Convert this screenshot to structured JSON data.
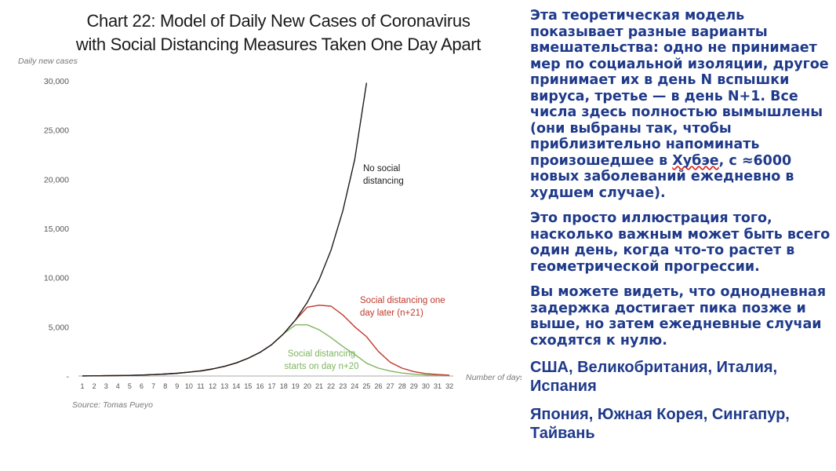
{
  "chart_data": {
    "type": "line",
    "title": [
      "Chart 22: Model of Daily New Cases of Coronavirus",
      "with Social Distancing Measures Taken One Day Apart"
    ],
    "ylabel": "Daily new cases",
    "xlabel": "Number of days",
    "source": "Source: Tomas Pueyo",
    "ylim": [
      0,
      30000
    ],
    "y_ticks": [
      {
        "value": 0,
        "label": "-"
      },
      {
        "value": 5000,
        "label": "5,000"
      },
      {
        "value": 10000,
        "label": "10,000"
      },
      {
        "value": 15000,
        "label": "15,000"
      },
      {
        "value": 20000,
        "label": "20,000"
      },
      {
        "value": 25000,
        "label": "25,000"
      },
      {
        "value": 30000,
        "label": "30,000"
      }
    ],
    "x": [
      1,
      2,
      3,
      4,
      5,
      6,
      7,
      8,
      9,
      10,
      11,
      12,
      13,
      14,
      15,
      16,
      17,
      18,
      19,
      20,
      21,
      22,
      23,
      24,
      25,
      26,
      27,
      28,
      29,
      30,
      31,
      32
    ],
    "series": [
      {
        "name": "No social distancing",
        "label_lines": [
          "No social",
          "distancing"
        ],
        "color": "#1c1c1c",
        "x": [
          1,
          2,
          3,
          4,
          5,
          6,
          7,
          8,
          9,
          10,
          11,
          12,
          13,
          14,
          15,
          16,
          17,
          18,
          19,
          20,
          21,
          22,
          23,
          24,
          25
        ],
        "values": [
          10,
          20,
          30,
          45,
          65,
          95,
          140,
          200,
          280,
          390,
          520,
          720,
          980,
          1330,
          1800,
          2400,
          3200,
          4300,
          5700,
          7500,
          9800,
          12800,
          16800,
          22000,
          29800
        ]
      },
      {
        "name": "Social distancing one day later (n+21)",
        "label_lines": [
          "Social distancing one",
          "day later (n+21)"
        ],
        "color": "#c0392b",
        "x": [
          1,
          2,
          3,
          4,
          5,
          6,
          7,
          8,
          9,
          10,
          11,
          12,
          13,
          14,
          15,
          16,
          17,
          18,
          19,
          20,
          21,
          22,
          23,
          24,
          25,
          26,
          27,
          28,
          29,
          30,
          31,
          32
        ],
        "values": [
          10,
          20,
          30,
          45,
          65,
          95,
          140,
          200,
          280,
          390,
          520,
          720,
          980,
          1330,
          1800,
          2400,
          3200,
          4300,
          5700,
          7000,
          7200,
          7100,
          6200,
          5000,
          4000,
          2500,
          1400,
          800,
          450,
          250,
          150,
          90
        ]
      },
      {
        "name": "Social distancing starts on day n+20",
        "label_lines": [
          "Social distancing",
          "starts on day n+20"
        ],
        "color": "#7fb55e",
        "x": [
          1,
          2,
          3,
          4,
          5,
          6,
          7,
          8,
          9,
          10,
          11,
          12,
          13,
          14,
          15,
          16,
          17,
          18,
          19,
          20,
          21,
          22,
          23,
          24,
          25,
          26,
          27,
          28,
          29,
          30,
          31,
          32
        ],
        "values": [
          10,
          20,
          30,
          45,
          65,
          95,
          140,
          200,
          280,
          390,
          520,
          720,
          980,
          1330,
          1800,
          2400,
          3200,
          4300,
          5200,
          5200,
          4700,
          3900,
          3000,
          2200,
          1300,
          800,
          500,
          300,
          180,
          100,
          60,
          40
        ]
      }
    ],
    "grid": false
  },
  "text_panel": {
    "paragraphs": [
      "Эта теоретическая модель показывает разные варианты вмешательства: одно не принимает мер по социальной изоляции, другое принимает их в день N вспышки вируса, третье — в день N+1. Все числа здесь полностью вымышлены (они выбраны так, чтобы приблизительно напоминать произошедшее в Хубэе, с ≈6000 новых заболеваний ежедневно в худшем случае).",
      "Это просто иллюстрация того, насколько важным может быть всего один день, когда что-то растет в геометрической прогрессии.",
      "Вы можете видеть, что однодневная задержка достигает пика позже и выше, но затем ежедневные случаи сходятся к нулю."
    ],
    "countries_1": "США, Великобритания, Италия, Испания",
    "countries_2": "Япония, Южная Корея, Сингапур, Тайвань"
  },
  "colors": {
    "text_blue": "#1f3a8a",
    "axis_gray": "#777777"
  }
}
